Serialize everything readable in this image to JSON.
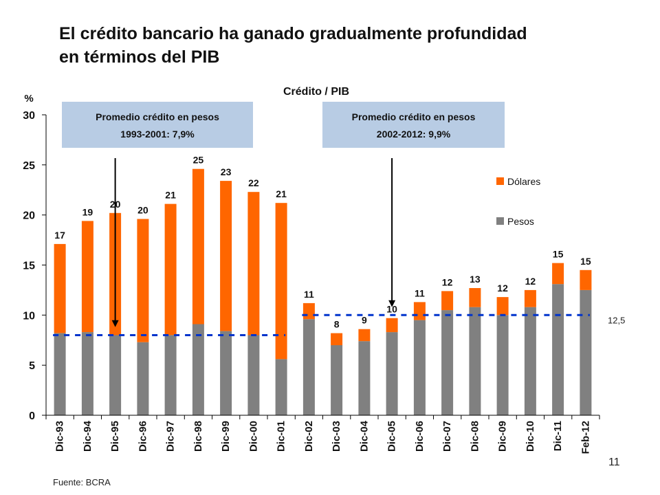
{
  "slide": {
    "title_line1": "El crédito bancario ha ganado gradualmente profundidad",
    "title_line2": "en términos del PIB",
    "source": "Fuente: BCRA",
    "page_number": "11"
  },
  "chart_data": {
    "type": "bar",
    "stacked": true,
    "title": "Crédito / PIB",
    "ylabel": "%",
    "ylim": [
      0,
      30
    ],
    "yticks": [
      0,
      5,
      10,
      15,
      20,
      25,
      30
    ],
    "categories": [
      "Dic-93",
      "Dic-94",
      "Dic-95",
      "Dic-96",
      "Dic-97",
      "Dic-98",
      "Dic-99",
      "Dic-00",
      "Dic-01",
      "Dic-02",
      "Dic-03",
      "Dic-04",
      "Dic-05",
      "Dic-06",
      "Dic-07",
      "Dic-08",
      "Dic-09",
      "Dic-10",
      "Dic-11",
      "Feb-12"
    ],
    "series": [
      {
        "name": "Pesos",
        "color": "#808080",
        "values": [
          8.2,
          8.3,
          8.0,
          7.3,
          8.0,
          9.1,
          8.4,
          8.0,
          5.6,
          9.6,
          7.0,
          7.4,
          8.3,
          9.5,
          10.5,
          10.8,
          10.0,
          10.8,
          13.1,
          12.5
        ]
      },
      {
        "name": "Dólares",
        "color": "#ff6600",
        "values": [
          8.9,
          11.1,
          12.2,
          12.3,
          13.1,
          15.5,
          15.0,
          14.3,
          15.6,
          1.6,
          1.2,
          1.2,
          1.4,
          1.8,
          1.9,
          1.9,
          1.8,
          1.7,
          2.1,
          2.0
        ]
      }
    ],
    "total_labels": [
      "17",
      "19",
      "20",
      "20",
      "21",
      "25",
      "23",
      "22",
      "21",
      "11",
      "8",
      "9",
      "10",
      "11",
      "12",
      "13",
      "12",
      "12",
      "15",
      "15"
    ],
    "legend": {
      "placement": "right"
    },
    "reference_lines": [
      {
        "value": 8.0,
        "from": "Dic-93",
        "to": "Dic-01",
        "color": "#0033cc",
        "style": "dashed"
      },
      {
        "value": 10.0,
        "from": "Dic-02",
        "to": "Feb-12",
        "color": "#0033cc",
        "style": "dashed"
      }
    ],
    "annotations": [
      {
        "line1": "Promedio crédito en pesos",
        "line2": "1993-2001: 7,9%",
        "arrow_to": "Dic-95",
        "arrow_value": 8.8
      },
      {
        "line1": "Promedio crédito en pesos",
        "line2": "2002-2012: 9,9%",
        "arrow_to": "Dic-05",
        "arrow_value": 10.8
      }
    ],
    "end_label": "12,5",
    "end_label_value": 10.0,
    "annotation_box_color": "#b8cce4",
    "grid": false
  }
}
